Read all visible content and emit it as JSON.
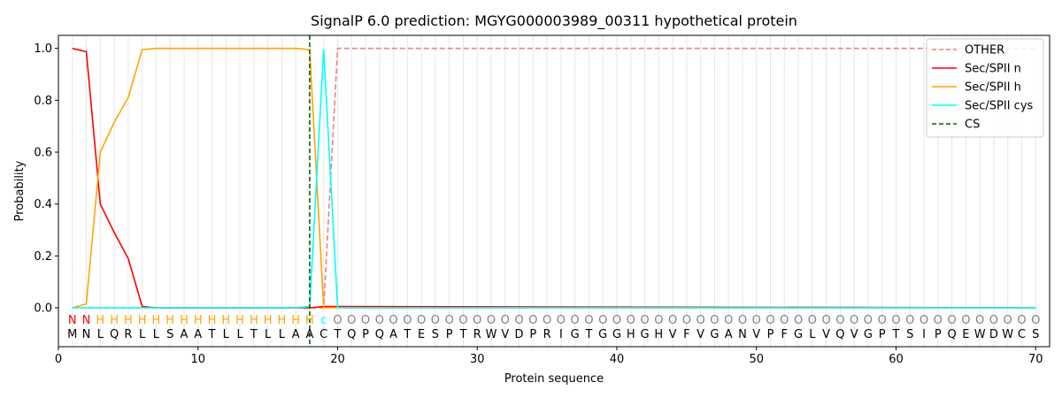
{
  "chart_data": {
    "type": "line",
    "title": "SignalP 6.0 prediction: MGYG000003989_00311 hypothetical protein",
    "xlabel": "Protein sequence",
    "ylabel": "Probability",
    "xlim": [
      0,
      71
    ],
    "ylim": [
      -0.15,
      1.05
    ],
    "xticks": [
      0,
      10,
      20,
      30,
      40,
      50,
      60,
      70
    ],
    "yticks": [
      0.0,
      0.2,
      0.4,
      0.6,
      0.8,
      1.0
    ],
    "xtick_labels": [
      "0",
      "10",
      "20",
      "30",
      "40",
      "50",
      "60",
      "70"
    ],
    "ytick_labels": [
      "0.0",
      "0.2",
      "0.4",
      "0.6",
      "0.8",
      "1.0"
    ],
    "legend_position": "top-right",
    "sequence": "MNLQRLLSAATLLTLLAACTQPQATESPTRWVDPRIGTGGHGHVFVGANVPFGLVQVGPTSIPQEWDWCS",
    "states": "NNHHHHHHHHHHHHHHHHcOOOOOOOOOOOOOOOOOOOOOOOOOOOOOOOOOOOOOOOOOOOOOOOOOOO",
    "state_colors": {
      "N": "#ff0000",
      "H": "#ffa500",
      "c": "#00ffff",
      "O": "#808080"
    },
    "cleavage_site": 18,
    "series": [
      {
        "name": "OTHER",
        "color": "#f08080",
        "dash": "dashed",
        "x": [
          1,
          18,
          19,
          20,
          70
        ],
        "values": [
          0.0,
          0.0,
          0.0,
          1.0,
          1.0
        ]
      },
      {
        "name": "Sec/SPII n",
        "color": "#ff0000",
        "dash": "solid",
        "x": [
          1,
          2,
          3,
          4,
          5,
          6,
          7,
          18,
          19,
          70
        ],
        "values": [
          1.0,
          0.987,
          0.4,
          0.29,
          0.19,
          0.005,
          0.0,
          0.0,
          0.005,
          0.0
        ]
      },
      {
        "name": "Sec/SPII h",
        "color": "#ffa500",
        "dash": "solid",
        "x": [
          1,
          2,
          3,
          4,
          5,
          6,
          7,
          17,
          18,
          19,
          20,
          70
        ],
        "values": [
          0.0,
          0.015,
          0.6,
          0.715,
          0.81,
          0.995,
          1.0,
          1.0,
          0.995,
          0.0,
          0.0,
          0.0
        ]
      },
      {
        "name": "Sec/SPII cys",
        "color": "#00ffff",
        "dash": "solid",
        "x": [
          1,
          17,
          18,
          19,
          20,
          70
        ],
        "values": [
          0.0,
          0.0,
          0.005,
          0.995,
          0.0,
          0.0
        ]
      }
    ],
    "cs_legend": {
      "name": "CS",
      "color": "#006400",
      "dash": "dashed"
    }
  }
}
